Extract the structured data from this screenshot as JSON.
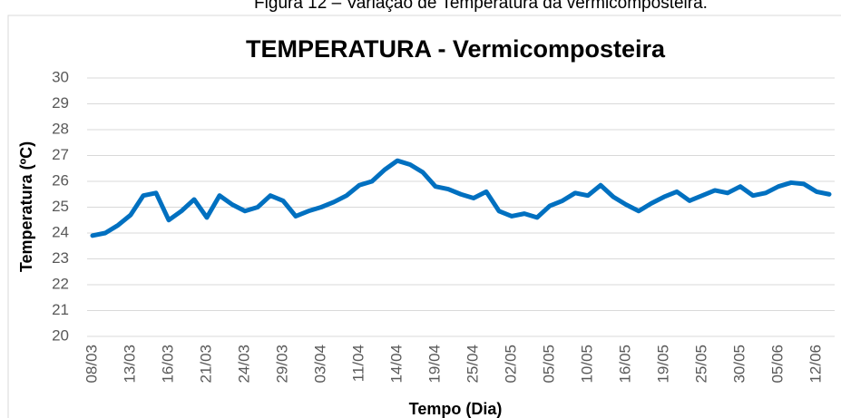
{
  "caption": "Figura 12 – Variação de Temperatura da vermicomposteira.",
  "chart_data": {
    "type": "line",
    "title": "TEMPERATURA -  Vermicomposteira",
    "x_label": "Tempo (Dia)",
    "y_label": "Temperatura (ºC)",
    "categories": [
      "08/03",
      null,
      null,
      "13/03",
      null,
      null,
      "16/03",
      null,
      null,
      "21/03",
      null,
      null,
      "24/03",
      null,
      null,
      "29/03",
      null,
      null,
      "03/04",
      null,
      null,
      "11/04",
      null,
      null,
      "14/04",
      null,
      null,
      "19/04",
      null,
      null,
      "25/04",
      null,
      null,
      "02/05",
      null,
      null,
      "05/05",
      null,
      null,
      "10/05",
      null,
      null,
      "16/05",
      null,
      null,
      "19/05",
      null,
      null,
      "25/05",
      null,
      null,
      "30/05",
      null,
      null,
      "05/06",
      null,
      null,
      "12/06",
      null
    ],
    "series": [
      {
        "name": "Temperatura",
        "color": "#0070c0",
        "values": [
          23.9,
          24.0,
          24.3,
          24.7,
          25.45,
          25.55,
          24.5,
          24.85,
          25.3,
          24.6,
          25.45,
          25.1,
          24.85,
          25.0,
          25.45,
          25.25,
          24.65,
          24.85,
          25.0,
          25.2,
          25.45,
          25.85,
          26.0,
          26.45,
          26.8,
          26.65,
          26.35,
          25.8,
          25.7,
          25.5,
          25.35,
          25.6,
          24.85,
          24.65,
          24.75,
          24.6,
          25.05,
          25.25,
          25.55,
          25.45,
          25.85,
          25.4,
          25.1,
          24.85,
          25.15,
          25.4,
          25.6,
          25.25,
          25.45,
          25.65,
          25.55,
          25.8,
          25.45,
          25.55,
          25.8,
          25.95,
          25.9,
          25.6,
          25.5
        ]
      }
    ],
    "ylim": [
      20,
      30
    ],
    "yticks": [
      20,
      21,
      22,
      23,
      24,
      25,
      26,
      27,
      28,
      29,
      30
    ],
    "grid": true
  }
}
